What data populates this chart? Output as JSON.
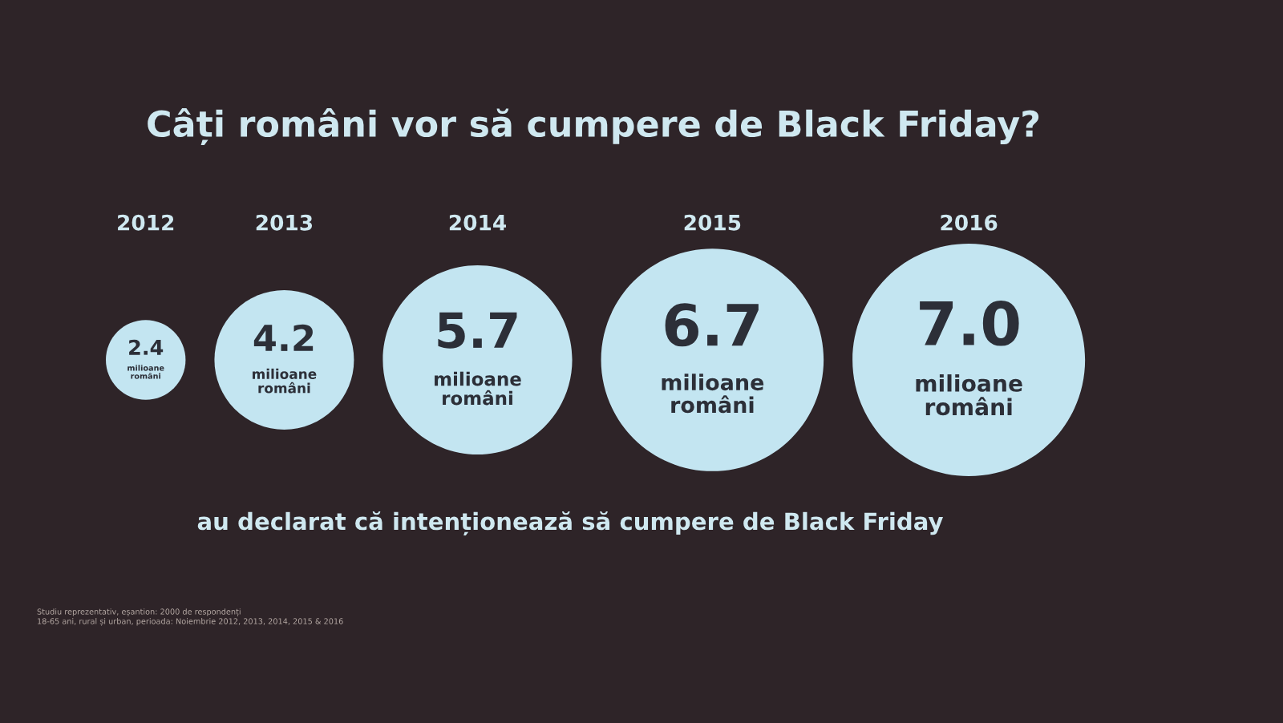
{
  "chart_data": {
    "type": "other",
    "title": "Câți români vor să cumpere de Black Friday?",
    "categories": [
      "2012",
      "2013",
      "2014",
      "2015",
      "2016"
    ],
    "values": [
      2.4,
      4.2,
      5.7,
      6.7,
      7.0
    ],
    "value_labels": [
      "2.4",
      "4.2",
      "5.7",
      "6.7",
      "7.0"
    ],
    "color": "#c3e5f1",
    "ylabel": "milioane\nromâni",
    "annotations": [
      "au declarat că intenționează să cumpere de Black Friday",
      "Studiu reprezentativ, eșantion: 2000 de respondenți\n18-65 ani, rural și urban, perioada: Noiembrie 2012, 2013, 2014, 2015 & 2016"
    ]
  }
}
